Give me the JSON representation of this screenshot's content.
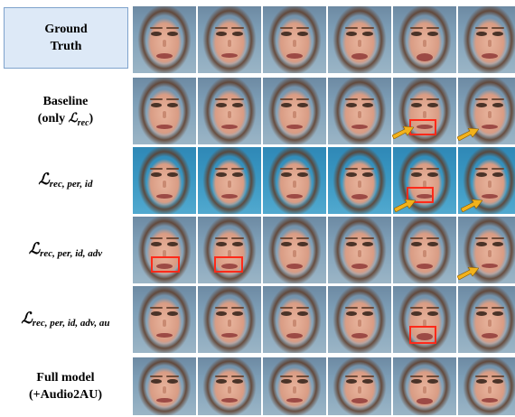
{
  "rows": [
    {
      "label_line1": "Ground",
      "label_line2": "Truth"
    },
    {
      "label_line1": "Baseline",
      "label_line2_prefix": "(only ",
      "label_line2_math": "ℒ",
      "label_line2_sub": "rec",
      "label_line2_suffix": ")"
    },
    {
      "label_math": "ℒ",
      "label_sub": "rec, per, id"
    },
    {
      "label_math": "ℒ",
      "label_sub": "rec, per, id, adv"
    },
    {
      "label_math": "ℒ",
      "label_sub": "rec, per, id, adv, au"
    },
    {
      "label_line1": "Full model",
      "label_line2": "(+Audio2AU)"
    }
  ],
  "colors": {
    "highlight_box": "#ff2a1a",
    "arrow": "#f2b21b",
    "gt_box_fill": "#dde9f7"
  }
}
